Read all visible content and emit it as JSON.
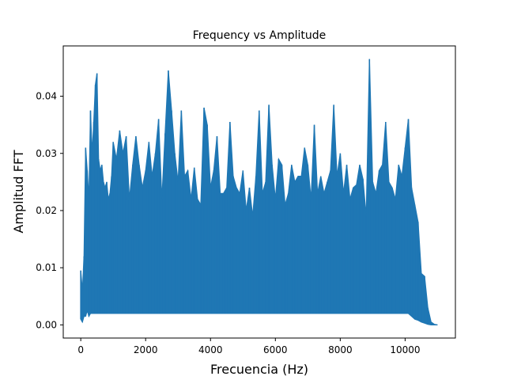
{
  "chart_data": {
    "type": "line",
    "title": "Frequency vs Amplitude",
    "xlabel": "Frecuencia (Hz)",
    "ylabel": "Amplitud FFT",
    "xlim": [
      -540,
      11550
    ],
    "ylim": [
      -0.0023,
      0.0488
    ],
    "xticks": [
      0,
      2000,
      4000,
      6000,
      8000,
      10000
    ],
    "yticks": [
      0.0,
      0.01,
      0.02,
      0.03,
      0.04
    ],
    "xtick_labels": [
      "0",
      "2000",
      "4000",
      "6000",
      "8000",
      "10000"
    ],
    "ytick_labels": [
      "0.00",
      "0.01",
      "0.02",
      "0.03",
      "0.04"
    ],
    "grid": false,
    "legend": "none",
    "series": [
      {
        "color": "#1f77b4",
        "x": [
          0,
          50,
          100,
          150,
          200,
          250,
          300,
          350,
          400,
          450,
          500,
          550,
          600,
          650,
          700,
          750,
          800,
          850,
          900,
          950,
          1000,
          1100,
          1200,
          1300,
          1400,
          1500,
          1600,
          1700,
          1800,
          1900,
          2000,
          2100,
          2200,
          2300,
          2400,
          2500,
          2600,
          2700,
          2800,
          2900,
          3000,
          3100,
          3200,
          3300,
          3400,
          3500,
          3600,
          3700,
          3800,
          3900,
          4000,
          4100,
          4200,
          4300,
          4400,
          4500,
          4600,
          4700,
          4800,
          4900,
          5000,
          5100,
          5200,
          5300,
          5400,
          5500,
          5600,
          5700,
          5800,
          5900,
          6000,
          6100,
          6200,
          6300,
          6400,
          6500,
          6600,
          6700,
          6800,
          6900,
          7000,
          7100,
          7200,
          7300,
          7400,
          7500,
          7600,
          7700,
          7800,
          7900,
          8000,
          8100,
          8200,
          8300,
          8400,
          8500,
          8600,
          8700,
          8800,
          8900,
          9000,
          9100,
          9200,
          9300,
          9400,
          9500,
          9600,
          9700,
          9800,
          9900,
          10000,
          10100,
          10200,
          10300,
          10400,
          10500,
          10600,
          10700,
          10800,
          10900,
          11000
        ],
        "y_upper": [
          0.0095,
          0.006,
          0.012,
          0.031,
          0.027,
          0.022,
          0.0375,
          0.03,
          0.0355,
          0.042,
          0.044,
          0.029,
          0.027,
          0.028,
          0.025,
          0.024,
          0.025,
          0.022,
          0.023,
          0.026,
          0.032,
          0.029,
          0.034,
          0.03,
          0.033,
          0.022,
          0.028,
          0.033,
          0.028,
          0.024,
          0.027,
          0.032,
          0.026,
          0.03,
          0.036,
          0.022,
          0.0335,
          0.0445,
          0.0375,
          0.03,
          0.025,
          0.0375,
          0.026,
          0.027,
          0.022,
          0.0275,
          0.022,
          0.021,
          0.038,
          0.035,
          0.024,
          0.027,
          0.033,
          0.023,
          0.023,
          0.024,
          0.0355,
          0.026,
          0.024,
          0.023,
          0.027,
          0.02,
          0.024,
          0.019,
          0.026,
          0.0375,
          0.023,
          0.025,
          0.0385,
          0.028,
          0.022,
          0.029,
          0.028,
          0.021,
          0.023,
          0.028,
          0.025,
          0.026,
          0.026,
          0.031,
          0.028,
          0.022,
          0.035,
          0.023,
          0.026,
          0.023,
          0.025,
          0.027,
          0.0385,
          0.026,
          0.03,
          0.023,
          0.028,
          0.022,
          0.024,
          0.0245,
          0.028,
          0.0255,
          0.019,
          0.0465,
          0.025,
          0.023,
          0.027,
          0.028,
          0.0355,
          0.025,
          0.024,
          0.022,
          0.028,
          0.026,
          0.031,
          0.036,
          0.024,
          0.021,
          0.018,
          0.009,
          0.0085,
          0.003,
          0.0005,
          0.0001,
          0.0
        ],
        "y_lower": [
          0.001,
          0.0005,
          0.0015,
          0.0015,
          0.0025,
          0.0015,
          0.002,
          0.002,
          0.002,
          0.002,
          0.002,
          0.002,
          0.002,
          0.002,
          0.002,
          0.002,
          0.002,
          0.002,
          0.002,
          0.002,
          0.002,
          0.002,
          0.002,
          0.002,
          0.002,
          0.002,
          0.002,
          0.002,
          0.002,
          0.002,
          0.002,
          0.002,
          0.002,
          0.002,
          0.002,
          0.002,
          0.002,
          0.002,
          0.002,
          0.002,
          0.002,
          0.002,
          0.002,
          0.002,
          0.002,
          0.002,
          0.002,
          0.002,
          0.002,
          0.002,
          0.002,
          0.002,
          0.002,
          0.002,
          0.002,
          0.002,
          0.002,
          0.002,
          0.002,
          0.002,
          0.002,
          0.002,
          0.002,
          0.002,
          0.002,
          0.002,
          0.002,
          0.002,
          0.002,
          0.002,
          0.002,
          0.002,
          0.002,
          0.002,
          0.002,
          0.002,
          0.002,
          0.002,
          0.002,
          0.002,
          0.002,
          0.002,
          0.002,
          0.002,
          0.002,
          0.002,
          0.002,
          0.002,
          0.002,
          0.002,
          0.002,
          0.002,
          0.002,
          0.002,
          0.002,
          0.002,
          0.002,
          0.002,
          0.002,
          0.002,
          0.002,
          0.002,
          0.002,
          0.002,
          0.002,
          0.002,
          0.002,
          0.002,
          0.002,
          0.002,
          0.002,
          0.002,
          0.0015,
          0.001,
          0.0008,
          0.0005,
          0.0003,
          0.0001,
          0.0,
          0.0,
          0.0
        ]
      }
    ]
  }
}
